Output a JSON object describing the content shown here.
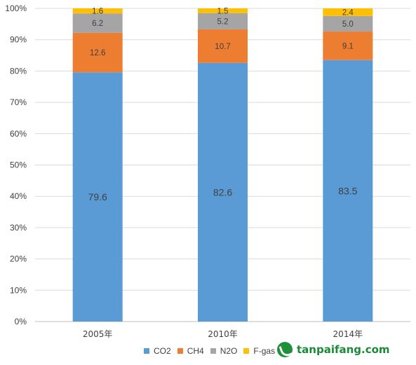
{
  "chart_data": {
    "type": "bar",
    "stacked": true,
    "percent_stacked": true,
    "categories": [
      "2005年",
      "2010年",
      "2014年"
    ],
    "series": [
      {
        "name": "CO2",
        "values": [
          79.6,
          82.6,
          83.5
        ],
        "color": "#5b9bd5"
      },
      {
        "name": "CH4",
        "values": [
          12.6,
          10.7,
          9.1
        ],
        "color": "#ed7d31"
      },
      {
        "name": "N2O",
        "values": [
          6.2,
          5.2,
          5.0
        ],
        "color": "#a5a5a5"
      },
      {
        "name": "F-gas",
        "values": [
          1.6,
          1.5,
          2.4
        ],
        "color": "#ffc000"
      }
    ],
    "data_labels": [
      [
        "79.6",
        "82.6",
        "83.5"
      ],
      [
        "12.6",
        "10.7",
        "9.1"
      ],
      [
        "6.2",
        "5.2",
        "5.0"
      ],
      [
        "1.6",
        "1.5",
        "2.4"
      ]
    ],
    "y_ticks": [
      "0%",
      "10%",
      "20%",
      "30%",
      "40%",
      "50%",
      "60%",
      "70%",
      "80%",
      "90%",
      "100%"
    ],
    "ylim": [
      0,
      100
    ],
    "grid": true,
    "legend_position": "bottom"
  },
  "watermark": {
    "text": "tanpaifang.com",
    "color": "#1a8a37"
  }
}
